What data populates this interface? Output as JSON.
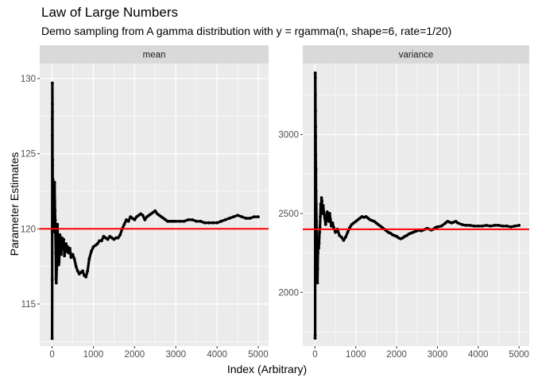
{
  "chart_data": {
    "type": "scatter",
    "title": "Law of Large Numbers",
    "subtitle": "Demo sampling from A gamma distribution with y = rgamma(n, shape=6, rate=1/20)",
    "xlabel": "Index (Arbitrary)",
    "ylabel": "Parameter Estimates",
    "grid": true,
    "point_color": "#000000",
    "reference_line_color": "#ff0000",
    "panel_background": "#ebebeb",
    "strip_background": "#d9d9d9",
    "facets": [
      {
        "name": "mean",
        "xlim": [
          -300,
          5250
        ],
        "ylim": [
          112.2,
          131
        ],
        "x_ticks": [
          0,
          1000,
          2000,
          3000,
          4000,
          5000
        ],
        "y_ticks": [
          115,
          120,
          125,
          130
        ],
        "reference_line": 120,
        "points": [
          [
            1,
            112.7
          ],
          [
            2,
            116.6
          ],
          [
            3,
            119.8
          ],
          [
            4,
            126.2
          ],
          [
            5,
            127.3
          ],
          [
            6,
            128.3
          ],
          [
            7,
            129.7
          ],
          [
            8,
            127.8
          ],
          [
            10,
            124.2
          ],
          [
            12,
            124.6
          ],
          [
            14,
            121.4
          ],
          [
            16,
            122.5
          ],
          [
            18,
            120.5
          ],
          [
            20,
            123.3
          ],
          [
            22,
            122.0
          ],
          [
            25,
            121.2
          ],
          [
            28,
            120.4
          ],
          [
            32,
            119.8
          ],
          [
            36,
            120.7
          ],
          [
            40,
            121.9
          ],
          [
            45,
            122.4
          ],
          [
            50,
            121.8
          ],
          [
            55,
            122.9
          ],
          [
            60,
            123.1
          ],
          [
            65,
            121.9
          ],
          [
            70,
            121.2
          ],
          [
            75,
            120.6
          ],
          [
            80,
            120.1
          ],
          [
            90,
            118.4
          ],
          [
            95,
            116.7
          ],
          [
            100,
            116.4
          ],
          [
            110,
            117.3
          ],
          [
            120,
            118.6
          ],
          [
            130,
            120.3
          ],
          [
            140,
            119.4
          ],
          [
            150,
            118.2
          ],
          [
            160,
            117.6
          ],
          [
            170,
            117.8
          ],
          [
            180,
            118.9
          ],
          [
            190,
            119.6
          ],
          [
            200,
            119.1
          ],
          [
            220,
            118.3
          ],
          [
            240,
            119.4
          ],
          [
            260,
            118.7
          ],
          [
            280,
            119.3
          ],
          [
            300,
            118.2
          ],
          [
            320,
            118.7
          ],
          [
            340,
            119.0
          ],
          [
            360,
            118.5
          ],
          [
            380,
            118.8
          ],
          [
            400,
            118.4
          ],
          [
            430,
            118.7
          ],
          [
            460,
            118.1
          ],
          [
            500,
            118.3
          ],
          [
            540,
            118.0
          ],
          [
            580,
            117.5
          ],
          [
            620,
            117.2
          ],
          [
            660,
            117.0
          ],
          [
            700,
            117.1
          ],
          [
            740,
            117.2
          ],
          [
            780,
            116.9
          ],
          [
            820,
            116.8
          ],
          [
            860,
            117.2
          ],
          [
            900,
            118.0
          ],
          [
            950,
            118.5
          ],
          [
            1000,
            118.8
          ],
          [
            1050,
            118.9
          ],
          [
            1100,
            119.0
          ],
          [
            1150,
            119.2
          ],
          [
            1200,
            119.2
          ],
          [
            1250,
            119.5
          ],
          [
            1300,
            119.4
          ],
          [
            1350,
            119.3
          ],
          [
            1400,
            119.5
          ],
          [
            1450,
            119.4
          ],
          [
            1500,
            119.3
          ],
          [
            1550,
            119.4
          ],
          [
            1600,
            119.4
          ],
          [
            1650,
            119.6
          ],
          [
            1700,
            120.0
          ],
          [
            1750,
            120.3
          ],
          [
            1800,
            120.6
          ],
          [
            1850,
            120.5
          ],
          [
            1900,
            120.8
          ],
          [
            1950,
            120.7
          ],
          [
            2000,
            120.6
          ],
          [
            2050,
            120.8
          ],
          [
            2100,
            120.9
          ],
          [
            2150,
            121.0
          ],
          [
            2200,
            120.9
          ],
          [
            2250,
            120.6
          ],
          [
            2300,
            120.8
          ],
          [
            2350,
            120.9
          ],
          [
            2400,
            121.0
          ],
          [
            2450,
            121.1
          ],
          [
            2500,
            121.2
          ],
          [
            2550,
            121.0
          ],
          [
            2600,
            120.9
          ],
          [
            2650,
            120.8
          ],
          [
            2700,
            120.7
          ],
          [
            2750,
            120.6
          ],
          [
            2800,
            120.5
          ],
          [
            2850,
            120.5
          ],
          [
            2900,
            120.5
          ],
          [
            2950,
            120.5
          ],
          [
            3000,
            120.5
          ],
          [
            3100,
            120.5
          ],
          [
            3200,
            120.5
          ],
          [
            3300,
            120.6
          ],
          [
            3400,
            120.6
          ],
          [
            3500,
            120.5
          ],
          [
            3600,
            120.5
          ],
          [
            3700,
            120.4
          ],
          [
            3800,
            120.4
          ],
          [
            3900,
            120.4
          ],
          [
            4000,
            120.4
          ],
          [
            4100,
            120.5
          ],
          [
            4200,
            120.6
          ],
          [
            4300,
            120.7
          ],
          [
            4400,
            120.8
          ],
          [
            4500,
            120.9
          ],
          [
            4600,
            120.8
          ],
          [
            4700,
            120.7
          ],
          [
            4800,
            120.7
          ],
          [
            4900,
            120.8
          ],
          [
            5000,
            120.8
          ]
        ]
      },
      {
        "name": "variance",
        "xlim": [
          -300,
          5250
        ],
        "ylim": [
          1660,
          3450
        ],
        "x_ticks": [
          0,
          1000,
          2000,
          3000,
          4000,
          5000
        ],
        "y_ticks": [
          2000,
          2500,
          3000
        ],
        "reference_line": 2400,
        "points": [
          [
            1,
            1710
          ],
          [
            3,
            1730
          ],
          [
            5,
            3390
          ],
          [
            7,
            3360
          ],
          [
            9,
            3250
          ],
          [
            11,
            3150
          ],
          [
            13,
            3050
          ],
          [
            15,
            2990
          ],
          [
            18,
            2870
          ],
          [
            20,
            2820
          ],
          [
            23,
            2780
          ],
          [
            26,
            2640
          ],
          [
            30,
            2560
          ],
          [
            35,
            2450
          ],
          [
            40,
            2360
          ],
          [
            45,
            2210
          ],
          [
            50,
            2170
          ],
          [
            55,
            2100
          ],
          [
            60,
            2060
          ],
          [
            65,
            2150
          ],
          [
            70,
            2250
          ],
          [
            80,
            2300
          ],
          [
            90,
            2280
          ],
          [
            100,
            2310
          ],
          [
            110,
            2380
          ],
          [
            120,
            2410
          ],
          [
            130,
            2480
          ],
          [
            140,
            2560
          ],
          [
            150,
            2520
          ],
          [
            160,
            2600
          ],
          [
            170,
            2580
          ],
          [
            180,
            2500
          ],
          [
            190,
            2520
          ],
          [
            200,
            2550
          ],
          [
            220,
            2500
          ],
          [
            240,
            2470
          ],
          [
            260,
            2430
          ],
          [
            280,
            2470
          ],
          [
            300,
            2510
          ],
          [
            320,
            2480
          ],
          [
            340,
            2450
          ],
          [
            360,
            2500
          ],
          [
            380,
            2460
          ],
          [
            400,
            2420
          ],
          [
            430,
            2440
          ],
          [
            460,
            2410
          ],
          [
            500,
            2380
          ],
          [
            550,
            2400
          ],
          [
            600,
            2360
          ],
          [
            650,
            2350
          ],
          [
            700,
            2330
          ],
          [
            750,
            2350
          ],
          [
            800,
            2380
          ],
          [
            850,
            2410
          ],
          [
            900,
            2430
          ],
          [
            950,
            2440
          ],
          [
            1000,
            2450
          ],
          [
            1050,
            2460
          ],
          [
            1100,
            2470
          ],
          [
            1150,
            2480
          ],
          [
            1200,
            2475
          ],
          [
            1250,
            2480
          ],
          [
            1300,
            2470
          ],
          [
            1350,
            2460
          ],
          [
            1400,
            2455
          ],
          [
            1450,
            2450
          ],
          [
            1500,
            2440
          ],
          [
            1550,
            2430
          ],
          [
            1600,
            2420
          ],
          [
            1650,
            2410
          ],
          [
            1700,
            2400
          ],
          [
            1750,
            2390
          ],
          [
            1800,
            2380
          ],
          [
            1850,
            2375
          ],
          [
            1900,
            2365
          ],
          [
            1950,
            2360
          ],
          [
            2000,
            2355
          ],
          [
            2050,
            2345
          ],
          [
            2100,
            2340
          ],
          [
            2150,
            2345
          ],
          [
            2200,
            2355
          ],
          [
            2250,
            2360
          ],
          [
            2300,
            2370
          ],
          [
            2350,
            2375
          ],
          [
            2400,
            2380
          ],
          [
            2450,
            2385
          ],
          [
            2500,
            2390
          ],
          [
            2550,
            2395
          ],
          [
            2600,
            2390
          ],
          [
            2650,
            2395
          ],
          [
            2700,
            2400
          ],
          [
            2750,
            2405
          ],
          [
            2800,
            2400
          ],
          [
            2850,
            2395
          ],
          [
            2900,
            2400
          ],
          [
            2950,
            2410
          ],
          [
            3000,
            2415
          ],
          [
            3100,
            2420
          ],
          [
            3200,
            2440
          ],
          [
            3250,
            2450
          ],
          [
            3300,
            2445
          ],
          [
            3350,
            2440
          ],
          [
            3400,
            2445
          ],
          [
            3450,
            2450
          ],
          [
            3500,
            2440
          ],
          [
            3600,
            2430
          ],
          [
            3700,
            2425
          ],
          [
            3800,
            2425
          ],
          [
            3900,
            2420
          ],
          [
            4000,
            2420
          ],
          [
            4100,
            2420
          ],
          [
            4200,
            2425
          ],
          [
            4300,
            2420
          ],
          [
            4400,
            2425
          ],
          [
            4500,
            2425
          ],
          [
            4600,
            2420
          ],
          [
            4700,
            2420
          ],
          [
            4800,
            2415
          ],
          [
            4900,
            2420
          ],
          [
            5000,
            2425
          ]
        ]
      }
    ]
  }
}
